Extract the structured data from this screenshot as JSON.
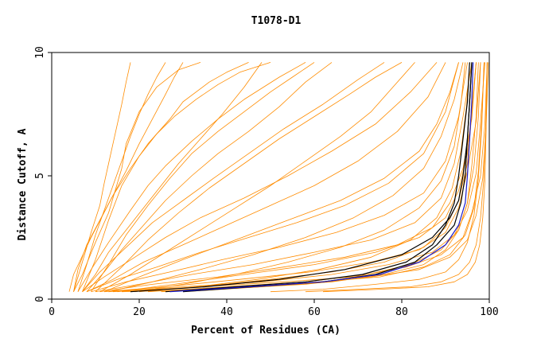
{
  "chart_data": {
    "type": "line",
    "title": "T1078-D1",
    "xlabel": "Percent of Residues (CA)",
    "ylabel": "Distance Cutoff, A",
    "xlim": [
      0,
      100
    ],
    "ylim": [
      0,
      10
    ],
    "xticks": [
      0,
      20,
      40,
      60,
      80,
      100
    ],
    "yticks": [
      0,
      5,
      10
    ],
    "grid": false,
    "legend": "none",
    "colors": {
      "orange": "#ff8c00",
      "black": "#000000",
      "blue": "#1a1acd",
      "frame": "#000000"
    },
    "series": [
      {
        "color": "orange",
        "x": [
          4,
          5,
          9,
          14,
          18,
          22,
          27,
          30,
          36,
          40,
          45
        ],
        "y": [
          0.3,
          1.0,
          2.5,
          4.2,
          5.3,
          6.3,
          7.3,
          8.0,
          8.8,
          9.2,
          9.6
        ]
      },
      {
        "color": "orange",
        "x": [
          5,
          7,
          10,
          13,
          16,
          17,
          20,
          24,
          29,
          34
        ],
        "y": [
          0.3,
          1.0,
          2.3,
          3.5,
          5.3,
          6.3,
          7.6,
          8.6,
          9.3,
          9.6
        ]
      },
      {
        "color": "orange",
        "x": [
          6,
          9,
          13,
          18,
          22,
          26,
          32,
          38,
          44,
          52,
          58
        ],
        "y": [
          0.3,
          1.2,
          2.3,
          3.6,
          4.6,
          5.4,
          6.4,
          7.3,
          8.1,
          9.0,
          9.6
        ]
      },
      {
        "color": "orange",
        "x": [
          7,
          11,
          17,
          23,
          30,
          37,
          45,
          53,
          62,
          70,
          76
        ],
        "y": [
          0.3,
          1.1,
          2.1,
          3.1,
          4.0,
          4.9,
          5.9,
          6.9,
          7.9,
          8.9,
          9.6
        ]
      },
      {
        "color": "orange",
        "x": [
          7,
          12,
          19,
          26,
          34,
          44,
          54,
          64,
          74,
          82,
          88
        ],
        "y": [
          0.3,
          0.9,
          1.7,
          2.5,
          3.3,
          4.1,
          5.0,
          6.0,
          7.1,
          8.4,
          9.6
        ]
      },
      {
        "color": "orange",
        "x": [
          8,
          14,
          21,
          30,
          40,
          50,
          60,
          70,
          79,
          86,
          90
        ],
        "y": [
          0.3,
          0.8,
          1.5,
          2.2,
          3.0,
          3.8,
          4.6,
          5.6,
          6.8,
          8.2,
          9.6
        ]
      },
      {
        "color": "orange",
        "x": [
          8,
          15,
          24,
          34,
          45,
          56,
          67,
          77,
          85,
          90,
          93
        ],
        "y": [
          0.3,
          0.8,
          1.3,
          1.9,
          2.5,
          3.1,
          3.8,
          4.7,
          5.9,
          7.6,
          9.6
        ]
      },
      {
        "color": "orange",
        "x": [
          9,
          17,
          27,
          39,
          52,
          65,
          76,
          85,
          90,
          93,
          95
        ],
        "y": [
          0.3,
          0.7,
          1.1,
          1.6,
          2.1,
          2.7,
          3.4,
          4.3,
          5.6,
          7.4,
          9.6
        ]
      },
      {
        "color": "orange",
        "x": [
          10,
          20,
          32,
          46,
          60,
          73,
          83,
          89,
          92,
          94,
          96
        ],
        "y": [
          0.3,
          0.6,
          1.0,
          1.4,
          1.9,
          2.4,
          3.1,
          4.1,
          5.5,
          7.4,
          9.6
        ]
      },
      {
        "color": "orange",
        "x": [
          11,
          23,
          38,
          53,
          67,
          79,
          87,
          91,
          94,
          96,
          97
        ],
        "y": [
          0.3,
          0.6,
          0.9,
          1.3,
          1.7,
          2.2,
          2.9,
          3.9,
          5.3,
          7.3,
          9.6
        ]
      },
      {
        "color": "orange",
        "x": [
          12,
          26,
          43,
          59,
          73,
          84,
          90,
          93,
          95,
          97,
          98
        ],
        "y": [
          0.3,
          0.5,
          0.8,
          1.1,
          1.5,
          2.0,
          2.7,
          3.7,
          5.2,
          7.2,
          9.6
        ]
      },
      {
        "color": "orange",
        "x": [
          13,
          30,
          48,
          64,
          77,
          87,
          92,
          95,
          97,
          98,
          99
        ],
        "y": [
          0.3,
          0.5,
          0.7,
          1.0,
          1.4,
          1.9,
          2.6,
          3.6,
          5.1,
          7.2,
          9.6
        ]
      },
      {
        "color": "orange",
        "x": [
          14,
          34,
          53,
          69,
          81,
          89,
          94,
          96,
          98,
          99,
          99.5
        ],
        "y": [
          0.3,
          0.5,
          0.7,
          0.9,
          1.3,
          1.8,
          2.5,
          3.5,
          5.0,
          7.1,
          9.6
        ]
      },
      {
        "color": "orange",
        "x": [
          16,
          38,
          58,
          73,
          84,
          91,
          95,
          97,
          98.5,
          99.3,
          99.8
        ],
        "y": [
          0.3,
          0.4,
          0.6,
          0.9,
          1.2,
          1.7,
          2.4,
          3.4,
          4.9,
          7.1,
          9.6
        ]
      },
      {
        "color": "orange",
        "x": [
          7,
          10,
          13,
          16,
          20,
          24,
          28,
          33,
          38,
          43,
          50
        ],
        "y": [
          0.3,
          1.6,
          3.2,
          4.6,
          5.8,
          6.7,
          7.4,
          8.1,
          8.7,
          9.2,
          9.6
        ]
      },
      {
        "color": "orange",
        "x": [
          10,
          16,
          22,
          29,
          36,
          44,
          52,
          60,
          68,
          74,
          80
        ],
        "y": [
          0.3,
          1.3,
          2.4,
          3.5,
          4.5,
          5.5,
          6.5,
          7.4,
          8.3,
          9.0,
          9.6
        ]
      },
      {
        "color": "orange",
        "x": [
          12,
          20,
          30,
          42,
          54,
          66,
          76,
          84,
          88,
          91,
          93
        ],
        "y": [
          0.3,
          0.9,
          1.6,
          2.4,
          3.2,
          4.0,
          4.9,
          6.0,
          7.1,
          8.4,
          9.6
        ]
      },
      {
        "color": "orange",
        "x": [
          15,
          28,
          44,
          60,
          74,
          84,
          90,
          93,
          95,
          96,
          97
        ],
        "y": [
          0.3,
          0.6,
          1.0,
          1.4,
          1.9,
          2.5,
          3.3,
          4.4,
          5.9,
          7.7,
          9.6
        ]
      },
      {
        "color": "orange",
        "x": [
          22,
          40,
          58,
          72,
          82,
          89,
          93,
          95,
          96.5,
          97.5,
          98
        ],
        "y": [
          0.3,
          0.5,
          0.7,
          1.0,
          1.4,
          2.0,
          2.8,
          3.9,
          5.4,
          7.4,
          9.6
        ]
      },
      {
        "color": "orange",
        "x": [
          30,
          48,
          64,
          76,
          85,
          90,
          93,
          95,
          96,
          97,
          97.5
        ],
        "y": [
          0.3,
          0.5,
          0.7,
          1.0,
          1.4,
          2.0,
          2.8,
          3.9,
          5.4,
          7.4,
          9.6
        ]
      },
      {
        "color": "orange",
        "x": [
          6,
          8,
          10,
          12,
          14,
          16,
          18,
          20,
          22,
          24,
          26
        ],
        "y": [
          0.3,
          1.4,
          2.6,
          3.6,
          4.6,
          5.6,
          6.6,
          7.5,
          8.3,
          9.0,
          9.6
        ]
      },
      {
        "color": "orange",
        "x": [
          5,
          6,
          8,
          11,
          14,
          17,
          20,
          23,
          26,
          28,
          30
        ],
        "y": [
          0.3,
          1.2,
          2.2,
          3.2,
          4.2,
          5.2,
          6.3,
          7.3,
          8.3,
          9.0,
          9.6
        ]
      },
      {
        "color": "orange",
        "x": [
          9,
          13,
          17,
          22,
          27,
          32,
          38,
          44,
          50,
          55,
          60
        ],
        "y": [
          0.3,
          1.4,
          2.6,
          3.8,
          4.9,
          5.9,
          6.8,
          7.6,
          8.4,
          9.0,
          9.6
        ]
      },
      {
        "color": "orange",
        "x": [
          8,
          12,
          16,
          21,
          26,
          32,
          38,
          45,
          52,
          58,
          64
        ],
        "y": [
          0.3,
          1.1,
          2.0,
          3.0,
          4.0,
          5.0,
          5.9,
          6.8,
          7.8,
          8.8,
          9.6
        ]
      },
      {
        "color": "orange",
        "x": [
          11,
          18,
          26,
          34,
          42,
          50,
          58,
          66,
          73,
          78,
          83
        ],
        "y": [
          0.3,
          1.0,
          1.9,
          2.8,
          3.7,
          4.6,
          5.6,
          6.6,
          7.6,
          8.6,
          9.6
        ]
      },
      {
        "color": "orange",
        "x": [
          13,
          23,
          34,
          46,
          58,
          69,
          78,
          85,
          89,
          92,
          94
        ],
        "y": [
          0.3,
          0.7,
          1.2,
          1.8,
          2.5,
          3.3,
          4.2,
          5.3,
          6.6,
          8.1,
          9.6
        ]
      },
      {
        "color": "orange",
        "x": [
          18,
          34,
          50,
          64,
          76,
          85,
          90,
          93,
          95,
          96,
          97
        ],
        "y": [
          0.3,
          0.5,
          0.8,
          1.1,
          1.5,
          2.1,
          2.9,
          4.0,
          5.5,
          7.5,
          9.6
        ]
      },
      {
        "color": "orange",
        "x": [
          25,
          44,
          61,
          75,
          85,
          91,
          94.5,
          96.5,
          97.5,
          98.3,
          98.8
        ],
        "y": [
          0.3,
          0.5,
          0.7,
          0.9,
          1.3,
          1.8,
          2.6,
          3.7,
          5.2,
          7.3,
          9.6
        ]
      },
      {
        "color": "orange",
        "x": [
          5,
          7,
          9,
          11,
          12,
          13,
          14,
          15,
          16,
          17,
          18
        ],
        "y": [
          0.3,
          1.5,
          2.7,
          3.8,
          4.7,
          5.5,
          6.3,
          7.1,
          7.9,
          8.8,
          9.6
        ]
      },
      {
        "color": "orange",
        "x": [
          7,
          10,
          13,
          17,
          21,
          25,
          29,
          34,
          39,
          44,
          48
        ],
        "y": [
          0.3,
          1.0,
          1.9,
          2.8,
          3.7,
          4.6,
          5.5,
          6.5,
          7.5,
          8.6,
          9.6
        ]
      },
      {
        "color": "orange",
        "x": [
          50,
          62,
          74,
          84,
          90,
          93,
          95,
          96.5,
          97.5,
          98.3,
          98.8
        ],
        "y": [
          0.3,
          0.4,
          0.6,
          0.8,
          1.1,
          1.6,
          2.3,
          3.4,
          4.9,
          7.0,
          9.6
        ]
      },
      {
        "color": "orange",
        "x": [
          58,
          70,
          82,
          89,
          93,
          95.5,
          97,
          98,
          98.7,
          99.2,
          99.5
        ],
        "y": [
          0.3,
          0.4,
          0.5,
          0.7,
          1.0,
          1.5,
          2.2,
          3.3,
          4.8,
          7.0,
          9.6
        ]
      },
      {
        "color": "orange",
        "x": [
          62,
          75,
          86,
          92,
          95,
          96.8,
          97.8,
          98.5,
          99.0,
          99.3,
          99.5
        ],
        "y": [
          0.3,
          0.4,
          0.5,
          0.7,
          1.0,
          1.5,
          2.2,
          3.3,
          4.8,
          7.0,
          9.6
        ]
      },
      {
        "color": "orange",
        "x": [
          19,
          30,
          42,
          54,
          66,
          76,
          84,
          89,
          92,
          93.5,
          94.5
        ],
        "y": [
          0.3,
          0.6,
          1.0,
          1.5,
          2.1,
          2.8,
          3.7,
          4.8,
          6.2,
          7.9,
          9.6
        ]
      },
      {
        "color": "orange",
        "x": [
          20,
          33,
          47,
          61,
          73,
          82,
          88,
          91.5,
          93.5,
          94.8,
          95.5
        ],
        "y": [
          0.3,
          0.5,
          0.8,
          1.2,
          1.7,
          2.4,
          3.3,
          4.5,
          6.0,
          7.8,
          9.6
        ]
      },
      {
        "color": "black",
        "x": [
          18,
          35,
          52,
          67,
          80,
          87,
          91,
          93,
          94,
          95,
          95.5,
          96
        ],
        "y": [
          0.3,
          0.5,
          0.8,
          1.2,
          1.8,
          2.5,
          3.3,
          4.0,
          5.0,
          6.5,
          8.0,
          9.6
        ]
      },
      {
        "color": "black",
        "x": [
          26,
          42,
          58,
          71,
          81,
          87,
          90,
          92,
          93,
          94,
          95,
          95.5
        ],
        "y": [
          0.3,
          0.5,
          0.7,
          1.0,
          1.5,
          2.2,
          3.0,
          3.9,
          5.0,
          6.5,
          8.0,
          9.6
        ]
      },
      {
        "color": "black",
        "x": [
          30,
          46,
          62,
          74,
          83,
          88,
          92,
          93.5,
          94.5,
          95,
          95.5,
          96
        ],
        "y": [
          0.3,
          0.5,
          0.7,
          1.0,
          1.5,
          2.2,
          3.0,
          3.9,
          5.0,
          6.5,
          8.0,
          9.6
        ]
      },
      {
        "color": "blue",
        "x": [
          27,
          45,
          62,
          75,
          84,
          90,
          93,
          94.5,
          95,
          95.5,
          96,
          96.3
        ],
        "y": [
          0.3,
          0.5,
          0.7,
          1.0,
          1.5,
          2.2,
          3.0,
          3.9,
          5.0,
          6.5,
          8.0,
          9.6
        ]
      }
    ]
  }
}
